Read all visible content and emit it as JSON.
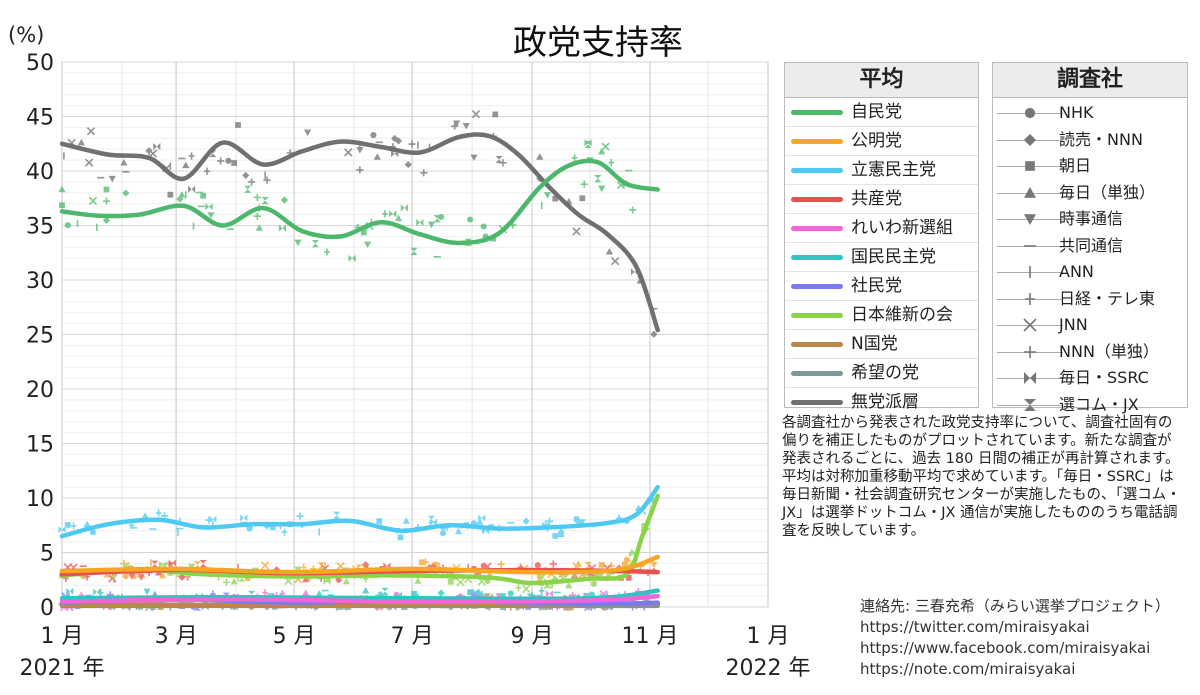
{
  "chart_data": {
    "type": "line",
    "title": "政党支持率",
    "ylabel": "(%)",
    "ylim": [
      0,
      50
    ],
    "yticks": [
      0,
      5,
      10,
      15,
      20,
      25,
      30,
      35,
      40,
      45,
      50
    ],
    "xlim": [
      "2021-01-01",
      "2022-01-01"
    ],
    "xticks": [
      {
        "date": "2021-01-01",
        "label": "1 月",
        "sub": "2021 年"
      },
      {
        "date": "2021-03-01",
        "label": "3 月"
      },
      {
        "date": "2021-05-01",
        "label": "5 月"
      },
      {
        "date": "2021-07-01",
        "label": "7 月"
      },
      {
        "date": "2021-09-01",
        "label": "9 月"
      },
      {
        "date": "2021-11-01",
        "label": "11 月"
      },
      {
        "date": "2022-01-01",
        "label": "1 月",
        "sub": "2022 年"
      }
    ],
    "grid": true,
    "legend_title": "平均",
    "series": [
      {
        "name": "自民党",
        "color": "#4db86b",
        "x": [
          "2021-01-01",
          "2021-01-20",
          "2021-02-10",
          "2021-03-05",
          "2021-03-25",
          "2021-04-15",
          "2021-05-05",
          "2021-05-25",
          "2021-06-15",
          "2021-07-05",
          "2021-07-25",
          "2021-08-15",
          "2021-09-05",
          "2021-09-20",
          "2021-10-05",
          "2021-10-20",
          "2021-11-05"
        ],
        "y": [
          36.3,
          35.9,
          36.0,
          36.8,
          35.0,
          36.6,
          34.5,
          34.0,
          35.3,
          34.2,
          33.4,
          34.3,
          38.5,
          40.5,
          40.8,
          38.8,
          38.3
        ]
      },
      {
        "name": "公明党",
        "color": "#f5a623",
        "x": [
          "2021-01-01",
          "2021-03-01",
          "2021-05-01",
          "2021-07-01",
          "2021-09-01",
          "2021-10-15",
          "2021-11-05"
        ],
        "y": [
          3.3,
          3.5,
          3.2,
          3.5,
          3.2,
          3.4,
          4.6
        ]
      },
      {
        "name": "立憲民主党",
        "color": "#4ec9f2",
        "x": [
          "2021-01-01",
          "2021-01-25",
          "2021-02-20",
          "2021-03-15",
          "2021-04-10",
          "2021-05-05",
          "2021-05-30",
          "2021-06-25",
          "2021-07-20",
          "2021-08-15",
          "2021-09-10",
          "2021-10-10",
          "2021-10-25",
          "2021-11-05"
        ],
        "y": [
          6.5,
          7.6,
          8.0,
          7.3,
          7.6,
          7.6,
          7.9,
          7.0,
          7.5,
          7.2,
          7.3,
          7.7,
          8.5,
          11.0
        ]
      },
      {
        "name": "共産党",
        "color": "#e8504f",
        "x": [
          "2021-01-01",
          "2021-03-01",
          "2021-05-01",
          "2021-07-01",
          "2021-09-01",
          "2021-10-15",
          "2021-11-05"
        ],
        "y": [
          3.0,
          3.4,
          3.1,
          3.3,
          3.4,
          3.3,
          3.2
        ]
      },
      {
        "name": "れいわ新選組",
        "color": "#f066d8",
        "x": [
          "2021-01-01",
          "2021-04-01",
          "2021-07-01",
          "2021-10-01",
          "2021-11-05"
        ],
        "y": [
          0.5,
          0.7,
          0.5,
          0.6,
          1.0
        ]
      },
      {
        "name": "国民民主党",
        "color": "#2fc4c0",
        "x": [
          "2021-01-01",
          "2021-04-01",
          "2021-07-01",
          "2021-10-01",
          "2021-11-05"
        ],
        "y": [
          0.8,
          0.9,
          0.8,
          0.8,
          1.5
        ]
      },
      {
        "name": "社民党",
        "color": "#7a7af0",
        "x": [
          "2021-01-01",
          "2021-03-01",
          "2021-05-01",
          "2021-07-01",
          "2021-10-01",
          "2021-11-05"
        ],
        "y": [
          0.4,
          0.7,
          0.4,
          0.6,
          0.3,
          0.4
        ]
      },
      {
        "name": "日本維新の会",
        "color": "#8bd44a",
        "x": [
          "2021-01-01",
          "2021-02-10",
          "2021-03-15",
          "2021-05-01",
          "2021-06-20",
          "2021-08-10",
          "2021-09-01",
          "2021-10-01",
          "2021-10-20",
          "2021-10-28",
          "2021-11-05"
        ],
        "y": [
          2.9,
          3.4,
          3.0,
          2.8,
          2.9,
          2.7,
          2.2,
          2.6,
          3.0,
          6.5,
          10.2
        ]
      },
      {
        "name": "N国党",
        "color": "#b8894a",
        "x": [
          "2021-01-01",
          "2021-06-01",
          "2021-11-05"
        ],
        "y": [
          0.2,
          0.2,
          0.3
        ]
      },
      {
        "name": "希望の党",
        "color": "#7a9898",
        "x": [
          "2021-01-01",
          "2021-06-01",
          "2021-11-05"
        ],
        "y": [
          0.1,
          0.1,
          0.1
        ]
      },
      {
        "name": "無党派層",
        "color": "#707070",
        "x": [
          "2021-01-01",
          "2021-01-25",
          "2021-02-15",
          "2021-03-05",
          "2021-03-25",
          "2021-04-15",
          "2021-05-05",
          "2021-05-25",
          "2021-06-15",
          "2021-07-05",
          "2021-07-25",
          "2021-08-10",
          "2021-08-25",
          "2021-09-10",
          "2021-09-25",
          "2021-10-10",
          "2021-10-25",
          "2021-11-05"
        ],
        "y": [
          42.5,
          41.5,
          41.2,
          39.3,
          42.6,
          40.6,
          41.8,
          42.7,
          42.2,
          41.7,
          43.1,
          43.2,
          41.5,
          38.5,
          36.0,
          34.2,
          31.2,
          25.4
        ]
      }
    ]
  },
  "survey_legend": {
    "title": "調査社",
    "items": [
      {
        "name": "NHK",
        "symbol": "circle"
      },
      {
        "name": "読売・NNN",
        "symbol": "diamond"
      },
      {
        "name": "朝日",
        "symbol": "square"
      },
      {
        "name": "毎日（単独）",
        "symbol": "triangle-up"
      },
      {
        "name": "時事通信",
        "symbol": "triangle-down"
      },
      {
        "name": "共同通信",
        "symbol": "dash"
      },
      {
        "name": "ANN",
        "symbol": "vbar"
      },
      {
        "name": "日経・テレ東",
        "symbol": "star4"
      },
      {
        "name": "JNN",
        "symbol": "x"
      },
      {
        "name": "NNN（単独）",
        "symbol": "plus"
      },
      {
        "name": "毎日・SSRC",
        "symbol": "bowtie-h"
      },
      {
        "name": "選コム・JX",
        "symbol": "hourglass"
      }
    ]
  },
  "note": "各調査社から発表された政党支持率について、調査社固有の偏りを補正したものがプロットされています。新たな調査が発表されるごとに、過去 180 日間の補正が再計算されます。平均は対称加重移動平均で求めています。「毎日・SSRC」は毎日新聞・社会調査研究センターが実施したもの、「選コム・JX」は選挙ドットコム・JX 通信が実施したもののうち電話調査を反映しています。",
  "contact": {
    "title": "連絡先: 三春充希（みらい選挙プロジェクト）",
    "links": [
      "https://twitter.com/miraisyakai",
      "https://www.facebook.com/miraisyakai",
      "https://note.com/miraisyakai"
    ]
  }
}
